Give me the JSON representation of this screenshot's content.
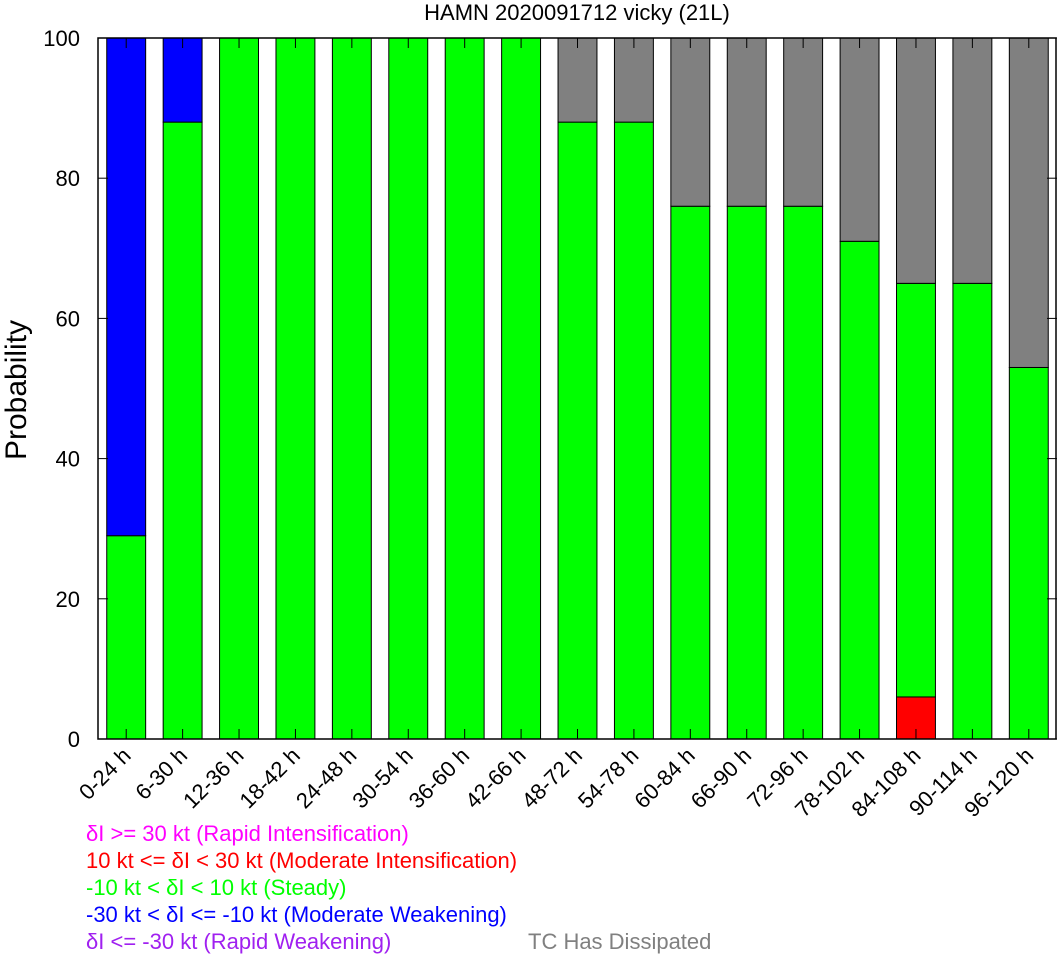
{
  "chart_data": {
    "type": "bar",
    "stacked": true,
    "title": "HAMN 2020091712 vicky (21L)",
    "xlabel": "",
    "ylabel": "Probability",
    "ylim": [
      0,
      100
    ],
    "yticks": [
      "0",
      "20",
      "40",
      "60",
      "80",
      "100"
    ],
    "grid": false,
    "categories": [
      "0-24 h",
      "6-30 h",
      "12-36 h",
      "18-42 h",
      "24-48 h",
      "30-54 h",
      "36-60 h",
      "42-66 h",
      "48-72 h",
      "54-78 h",
      "60-84 h",
      "66-90 h",
      "72-96 h",
      "78-102 h",
      "84-108 h",
      "90-114 h",
      "96-120 h"
    ],
    "series": [
      {
        "name": "δI <= -30 kt (Rapid Weakening)",
        "color": "#a020f0",
        "values": [
          0,
          0,
          0,
          0,
          0,
          0,
          0,
          0,
          0,
          0,
          0,
          0,
          0,
          0,
          0,
          0,
          0
        ]
      },
      {
        "name": "-30 kt < δI <= -10 kt (Moderate Weakening)",
        "color": "#0000ff",
        "values": [
          71,
          12,
          0,
          0,
          0,
          0,
          0,
          0,
          0,
          0,
          0,
          0,
          0,
          0,
          0,
          0,
          0
        ]
      },
      {
        "name": "-10 kt < δI < 10 kt (Steady)",
        "color": "#00ff00",
        "values": [
          29,
          88,
          100,
          100,
          100,
          100,
          100,
          100,
          88,
          88,
          76,
          76,
          76,
          71,
          59,
          65,
          53
        ]
      },
      {
        "name": "10 kt <= δI < 30 kt (Moderate Intensification)",
        "color": "#ff0000",
        "values": [
          0,
          0,
          0,
          0,
          0,
          0,
          0,
          0,
          0,
          0,
          0,
          0,
          0,
          0,
          6,
          0,
          0
        ]
      },
      {
        "name": "δI >= 30 kt (Rapid Intensification)",
        "color": "#ff00ff",
        "values": [
          0,
          0,
          0,
          0,
          0,
          0,
          0,
          0,
          0,
          0,
          0,
          0,
          0,
          0,
          0,
          0,
          0
        ]
      },
      {
        "name": "TC Has Dissipated",
        "color": "#808080",
        "values": [
          0,
          0,
          0,
          0,
          0,
          0,
          0,
          0,
          12,
          12,
          24,
          24,
          24,
          29,
          35,
          35,
          47
        ]
      }
    ],
    "stack_order": [
      3,
      2,
      1,
      0,
      4,
      5
    ]
  },
  "legend": {
    "ri": {
      "label": "δI >= 30 kt (Rapid Intensification)",
      "color": "#ff00ff"
    },
    "mi": {
      "label": "10 kt <= δI < 30 kt (Moderate Intensification)",
      "color": "#ff0000"
    },
    "st": {
      "label": "-10 kt < δI < 10 kt (Steady)",
      "color": "#00ff00"
    },
    "mw": {
      "label": "-30 kt < δI <= -10 kt (Moderate Weakening)",
      "color": "#0000ff"
    },
    "rw": {
      "label": "δI <= -30 kt (Rapid Weakening)",
      "color": "#a020f0"
    },
    "dis": {
      "label": "TC Has Dissipated",
      "color": "#808080"
    }
  }
}
